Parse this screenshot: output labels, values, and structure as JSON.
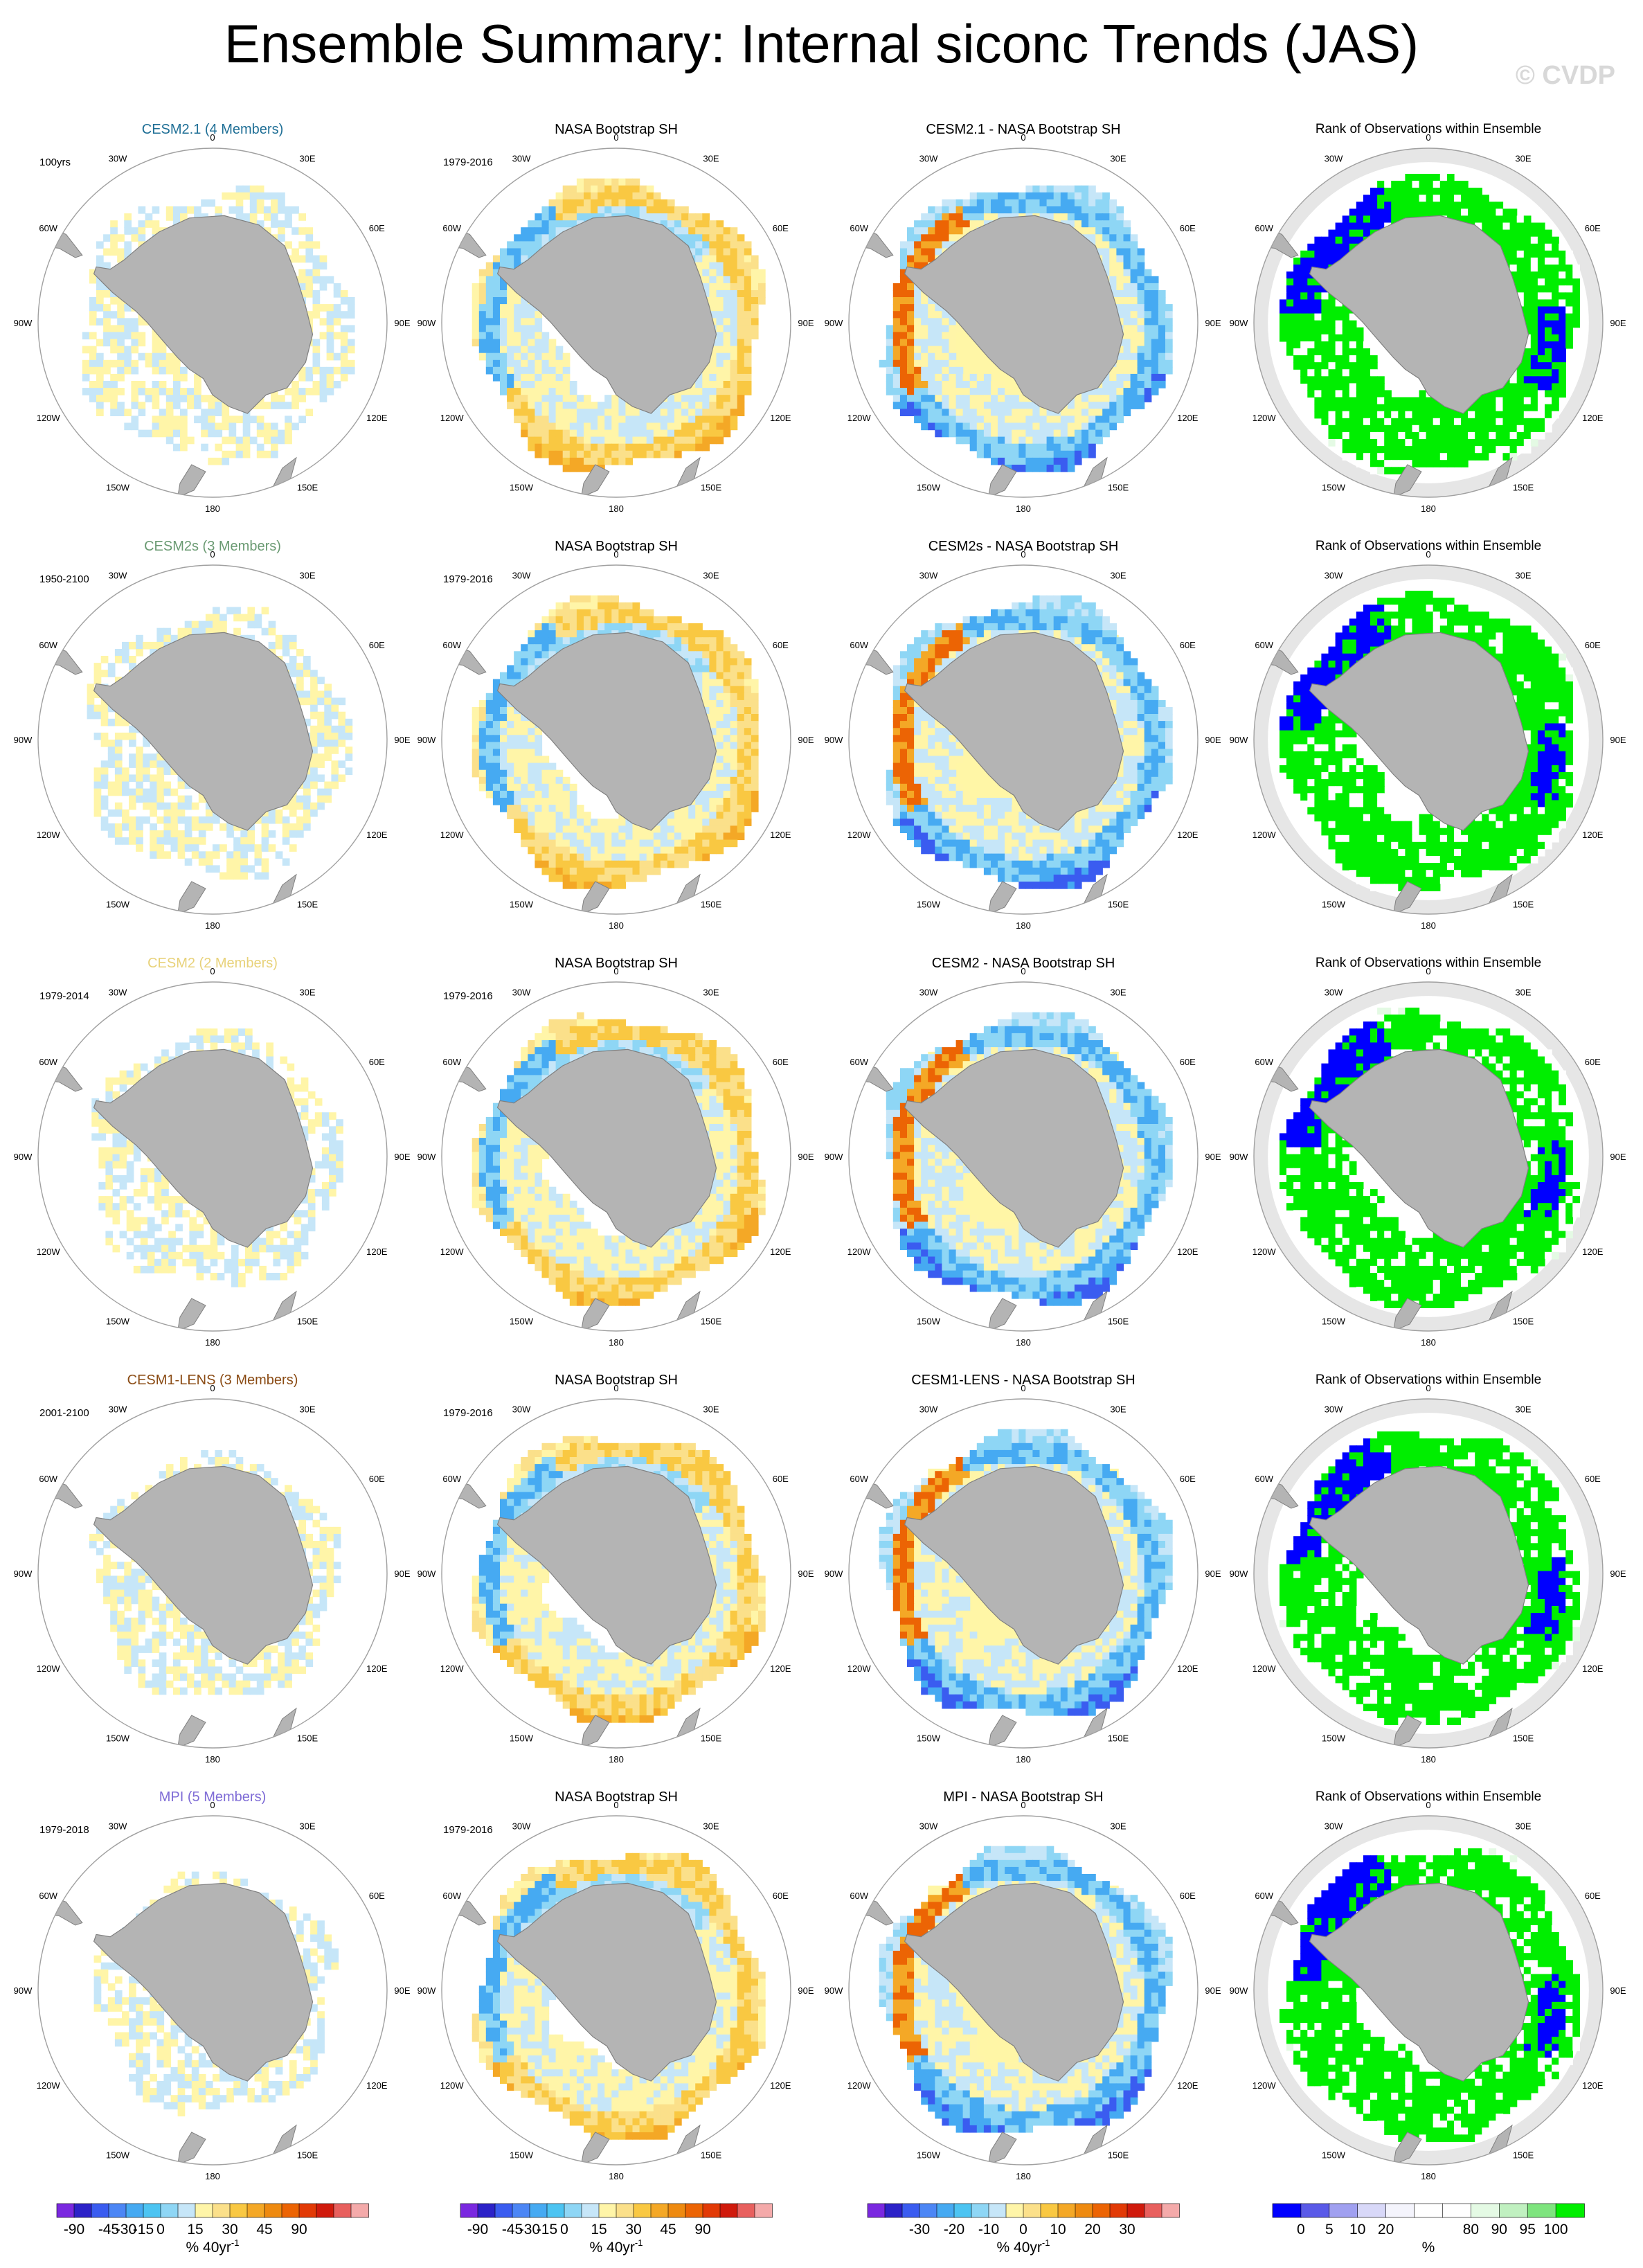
{
  "title": "Ensemble Summary: Internal siconc Trends (JAS)",
  "watermark": "© CVDP",
  "obs_title": "NASA Bootstrap SH",
  "obs_period": "1979-2016",
  "rank_title": "Rank of Observations within Ensemble",
  "lon_labels": [
    "0",
    "30E",
    "60E",
    "90E",
    "120E",
    "150E",
    "180",
    "150W",
    "120W",
    "90W",
    "60W",
    "30W"
  ],
  "rows": [
    {
      "model_title": "CESM2.1 (4 Members)",
      "color": "#1f6f96",
      "period": "100yrs",
      "diff_title": "CESM2.1 - NASA Bootstrap SH"
    },
    {
      "model_title": "CESM2s (3 Members)",
      "color": "#6a9a72",
      "period": "1950-2100",
      "diff_title": "CESM2s - NASA Bootstrap SH"
    },
    {
      "model_title": "CESM2 (2 Members)",
      "color": "#e8d27a",
      "period": "1979-2014",
      "diff_title": "CESM2 - NASA Bootstrap SH"
    },
    {
      "model_title": "CESM1-LENS (3 Members)",
      "color": "#8a4b14",
      "period": "2001-2100",
      "diff_title": "CESM1-LENS - NASA Bootstrap SH"
    },
    {
      "model_title": "MPI (5 Members)",
      "color": "#7e6bd6",
      "period": "1979-2018",
      "diff_title": "MPI - NASA Bootstrap SH"
    }
  ],
  "colorbars": [
    {
      "colors": [
        "#7a28e0",
        "#2c22c8",
        "#3a5cf0",
        "#4c86f5",
        "#46aaf2",
        "#4cc4f2",
        "#8ed6f5",
        "#c6e6f8",
        "#fff5a8",
        "#fbe08a",
        "#f9c842",
        "#f4a826",
        "#ee8a10",
        "#ec6404",
        "#e23a06",
        "#d01a0c",
        "#e8605e",
        "#f4aaaa"
      ],
      "labels": [
        "-90",
        "-45",
        "-30",
        "-15",
        "0",
        "15",
        "30",
        "45",
        "90"
      ],
      "label_boundaries": [
        1,
        3,
        4,
        5,
        6,
        8,
        10,
        12,
        14
      ],
      "unit": "% 40yr",
      "unit_sup": "-1"
    },
    {
      "colors": [
        "#7a28e0",
        "#2c22c8",
        "#3a5cf0",
        "#4c86f5",
        "#46aaf2",
        "#4cc4f2",
        "#8ed6f5",
        "#c6e6f8",
        "#fff5a8",
        "#fbe08a",
        "#f9c842",
        "#f4a826",
        "#ee8a10",
        "#ec6404",
        "#e23a06",
        "#d01a0c",
        "#e8605e",
        "#f4aaaa"
      ],
      "labels": [
        "-90",
        "-45",
        "-30",
        "-15",
        "0",
        "15",
        "30",
        "45",
        "90"
      ],
      "label_boundaries": [
        1,
        3,
        4,
        5,
        6,
        8,
        10,
        12,
        14
      ],
      "unit": "% 40yr",
      "unit_sup": "-1"
    },
    {
      "colors": [
        "#7a28e0",
        "#2c22c8",
        "#3a5cf0",
        "#4c86f5",
        "#46aaf2",
        "#4cc4f2",
        "#8ed6f5",
        "#c6e6f8",
        "#fff5a8",
        "#fbe08a",
        "#f9c842",
        "#f4a826",
        "#ee8a10",
        "#ec6404",
        "#e23a06",
        "#d01a0c",
        "#e8605e",
        "#f4aaaa"
      ],
      "labels": [
        "-30",
        "-20",
        "-10",
        "0",
        "10",
        "20",
        "30"
      ],
      "label_boundaries": [
        3,
        5,
        7,
        9,
        11,
        13,
        15
      ],
      "unit": "% 40yr",
      "unit_sup": "-1"
    },
    {
      "colors": [
        "#0000ff",
        "#5a5ae8",
        "#a0a0f0",
        "#d8d8f8",
        "#f4f4fc",
        "#ffffff",
        "#ffffff",
        "#e4fae4",
        "#c0f0c0",
        "#7ee47e",
        "#00ee00"
      ],
      "labels": [
        "0",
        "5",
        "10",
        "20",
        "80",
        "90",
        "95",
        "100"
      ],
      "label_boundaries": [
        1,
        2,
        3,
        4,
        7,
        8,
        9,
        10
      ],
      "unit": "%",
      "unit_sup": ""
    }
  ],
  "colors": {
    "land": "#b4b4b4",
    "ocean_rank": "#e6e6e6",
    "diff_background": "#fff6a6",
    "circle": "#a0a0a0"
  }
}
